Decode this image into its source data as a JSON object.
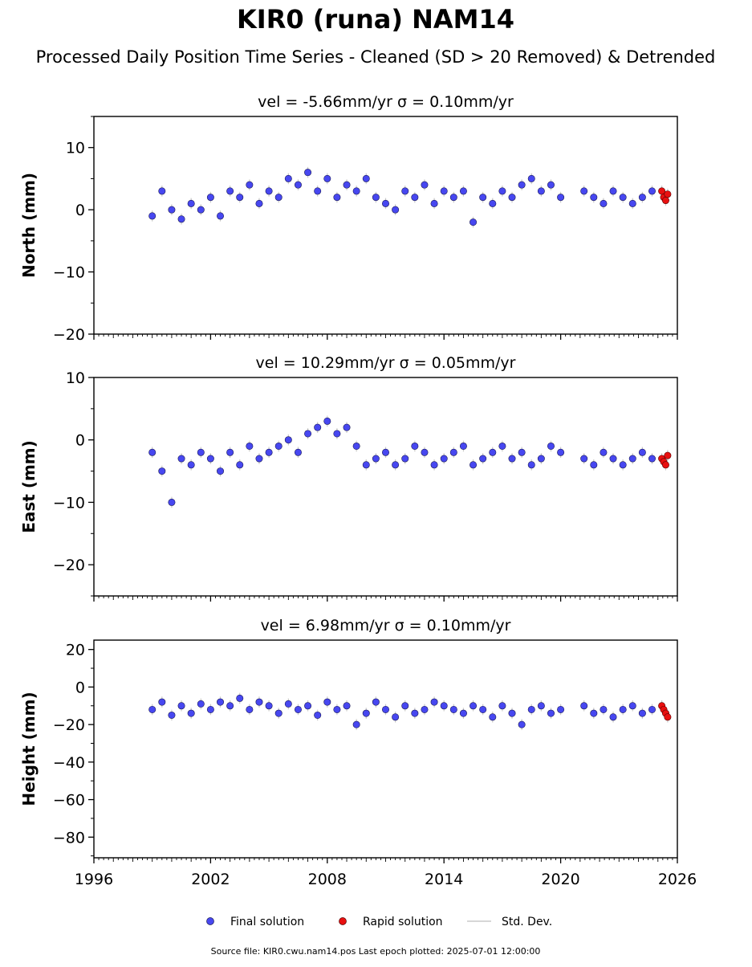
{
  "title": "KIR0 (runa) NAM14",
  "subtitle": "Processed Daily Position Time Series - Cleaned (SD > 20 Removed) & Detrended",
  "footer": "Source file: KIR0.cwu.nam14.pos  Last epoch plotted: 2025-07-01 12:00:00",
  "colors": {
    "final": "#4747f0",
    "final_edge": "#1a1a55",
    "rapid": "#e81010",
    "stddev": "#c8c8c8"
  },
  "legend": {
    "final": "Final solution",
    "rapid": "Rapid solution",
    "stddev": "Std. Dev."
  },
  "chart_data": [
    {
      "type": "scatter",
      "title": "vel = -5.66mm/yr   σ = 0.10mm/yr",
      "ylabel": "North (mm)",
      "xlim": [
        1996,
        2026
      ],
      "ylim": [
        -20,
        15
      ],
      "yticks": [
        10,
        0,
        -10,
        -20
      ],
      "xticks": [
        1996,
        2002,
        2008,
        2014,
        2020,
        2026
      ],
      "x_label_visible": false,
      "series": [
        {
          "name": "Final solution",
          "x": [
            1999.0,
            1999.5,
            2000.0,
            2000.5,
            2001.0,
            2001.5,
            2002.0,
            2002.5,
            2003.0,
            2003.5,
            2004.0,
            2004.5,
            2005.0,
            2005.5,
            2006.0,
            2006.5,
            2007.0,
            2007.5,
            2008.0,
            2008.5,
            2009.0,
            2009.5,
            2010.0,
            2010.5,
            2011.0,
            2011.5,
            2012.0,
            2012.5,
            2013.0,
            2013.5,
            2014.0,
            2014.5,
            2015.0,
            2015.5,
            2016.0,
            2016.5,
            2017.0,
            2017.5,
            2018.0,
            2018.5,
            2019.0,
            2019.5,
            2020.0,
            2021.2,
            2021.7,
            2022.2,
            2022.7,
            2023.2,
            2023.7,
            2024.2,
            2024.7
          ],
          "y": [
            -1.0,
            3.0,
            0.0,
            -1.5,
            1.0,
            0.0,
            2.0,
            -1.0,
            3.0,
            2.0,
            4.0,
            1.0,
            3.0,
            2.0,
            5.0,
            4.0,
            6.0,
            3.0,
            5.0,
            2.0,
            4.0,
            3.0,
            5.0,
            2.0,
            1.0,
            0.0,
            3.0,
            2.0,
            4.0,
            1.0,
            3.0,
            2.0,
            3.0,
            -2.0,
            2.0,
            1.0,
            3.0,
            2.0,
            4.0,
            5.0,
            3.0,
            4.0,
            2.0,
            3.0,
            2.0,
            1.0,
            3.0,
            2.0,
            1.0,
            2.0,
            3.0
          ]
        },
        {
          "name": "Rapid solution",
          "x": [
            2025.2,
            2025.3,
            2025.4,
            2025.5
          ],
          "y": [
            3.0,
            2.0,
            1.5,
            2.5
          ]
        }
      ]
    },
    {
      "type": "scatter",
      "title": "vel = 10.29mm/yr   σ = 0.05mm/yr",
      "ylabel": "East (mm)",
      "xlim": [
        1996,
        2026
      ],
      "ylim": [
        -25,
        10
      ],
      "yticks": [
        10,
        0,
        -10,
        -20
      ],
      "xticks": [
        1996,
        2002,
        2008,
        2014,
        2020,
        2026
      ],
      "x_label_visible": false,
      "series": [
        {
          "name": "Final solution",
          "x": [
            1999.0,
            1999.5,
            2000.0,
            2000.5,
            2001.0,
            2001.5,
            2002.0,
            2002.5,
            2003.0,
            2003.5,
            2004.0,
            2004.5,
            2005.0,
            2005.5,
            2006.0,
            2006.5,
            2007.0,
            2007.5,
            2008.0,
            2008.5,
            2009.0,
            2009.5,
            2010.0,
            2010.5,
            2011.0,
            2011.5,
            2012.0,
            2012.5,
            2013.0,
            2013.5,
            2014.0,
            2014.5,
            2015.0,
            2015.5,
            2016.0,
            2016.5,
            2017.0,
            2017.5,
            2018.0,
            2018.5,
            2019.0,
            2019.5,
            2020.0,
            2021.2,
            2021.7,
            2022.2,
            2022.7,
            2023.2,
            2023.7,
            2024.2,
            2024.7
          ],
          "y": [
            -2.0,
            -5.0,
            -10.0,
            -3.0,
            -4.0,
            -2.0,
            -3.0,
            -5.0,
            -2.0,
            -4.0,
            -1.0,
            -3.0,
            -2.0,
            -1.0,
            0.0,
            -2.0,
            1.0,
            2.0,
            3.0,
            1.0,
            2.0,
            -1.0,
            -4.0,
            -3.0,
            -2.0,
            -4.0,
            -3.0,
            -1.0,
            -2.0,
            -4.0,
            -3.0,
            -2.0,
            -1.0,
            -4.0,
            -3.0,
            -2.0,
            -1.0,
            -3.0,
            -2.0,
            -4.0,
            -3.0,
            -1.0,
            -2.0,
            -3.0,
            -4.0,
            -2.0,
            -3.0,
            -4.0,
            -3.0,
            -2.0,
            -3.0
          ]
        },
        {
          "name": "Rapid solution",
          "x": [
            2025.2,
            2025.3,
            2025.4,
            2025.5
          ],
          "y": [
            -3.0,
            -3.5,
            -4.0,
            -2.5
          ]
        }
      ]
    },
    {
      "type": "scatter",
      "title": "vel = 6.98mm/yr   σ = 0.10mm/yr",
      "ylabel": "Height (mm)",
      "xlim": [
        1996,
        2026
      ],
      "ylim": [
        -91,
        25
      ],
      "yticks": [
        20,
        0,
        -20,
        -40,
        -60,
        -80
      ],
      "xticks": [
        1996,
        2002,
        2008,
        2014,
        2020,
        2026
      ],
      "x_label_visible": true,
      "series": [
        {
          "name": "Final solution",
          "x": [
            1999.0,
            1999.5,
            2000.0,
            2000.5,
            2001.0,
            2001.5,
            2002.0,
            2002.5,
            2003.0,
            2003.5,
            2004.0,
            2004.5,
            2005.0,
            2005.5,
            2006.0,
            2006.5,
            2007.0,
            2007.5,
            2008.0,
            2008.5,
            2009.0,
            2009.5,
            2010.0,
            2010.5,
            2011.0,
            2011.5,
            2012.0,
            2012.5,
            2013.0,
            2013.5,
            2014.0,
            2014.5,
            2015.0,
            2015.5,
            2016.0,
            2016.5,
            2017.0,
            2017.5,
            2018.0,
            2018.5,
            2019.0,
            2019.5,
            2020.0,
            2021.2,
            2021.7,
            2022.2,
            2022.7,
            2023.2,
            2023.7,
            2024.2,
            2024.7
          ],
          "y": [
            -12.0,
            -8.0,
            -15.0,
            -10.0,
            -14.0,
            -9.0,
            -12.0,
            -8.0,
            -10.0,
            -6.0,
            -12.0,
            -8.0,
            -10.0,
            -14.0,
            -9.0,
            -12.0,
            -10.0,
            -15.0,
            -8.0,
            -12.0,
            -10.0,
            -20.0,
            -14.0,
            -8.0,
            -12.0,
            -16.0,
            -10.0,
            -14.0,
            -12.0,
            -8.0,
            -10.0,
            -12.0,
            -14.0,
            -10.0,
            -12.0,
            -16.0,
            -10.0,
            -14.0,
            -20.0,
            -12.0,
            -10.0,
            -14.0,
            -12.0,
            -10.0,
            -14.0,
            -12.0,
            -16.0,
            -12.0,
            -10.0,
            -14.0,
            -12.0
          ]
        },
        {
          "name": "Rapid solution",
          "x": [
            2025.2,
            2025.3,
            2025.4,
            2025.5
          ],
          "y": [
            -10.0,
            -12.0,
            -14.0,
            -16.0
          ]
        }
      ]
    }
  ]
}
